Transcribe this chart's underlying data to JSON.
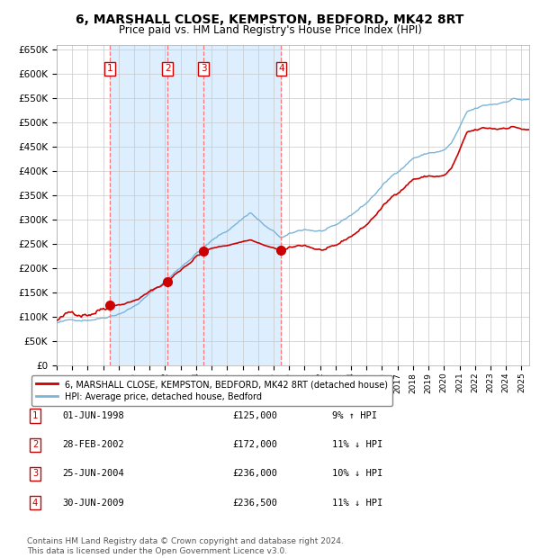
{
  "title": "6, MARSHALL CLOSE, KEMPSTON, BEDFORD, MK42 8RT",
  "subtitle": "Price paid vs. HM Land Registry's House Price Index (HPI)",
  "title_fontsize": 10,
  "subtitle_fontsize": 8.5,
  "background_color": "#ffffff",
  "plot_bg_color": "#ffffff",
  "grid_color": "#c8c8c8",
  "hpi_line_color": "#7ab4d8",
  "price_line_color": "#cc0000",
  "sale_marker_color": "#cc0000",
  "shade_color": "#ddeeff",
  "dashed_line_color": "#ff7777",
  "ylim": [
    0,
    660000
  ],
  "yticks": [
    0,
    50000,
    100000,
    150000,
    200000,
    250000,
    300000,
    350000,
    400000,
    450000,
    500000,
    550000,
    600000,
    650000
  ],
  "ytick_labels": [
    "£0",
    "£50K",
    "£100K",
    "£150K",
    "£200K",
    "£250K",
    "£300K",
    "£350K",
    "£400K",
    "£450K",
    "£500K",
    "£550K",
    "£600K",
    "£650K"
  ],
  "xlim_start": 1995.0,
  "xlim_end": 2025.5,
  "xticks": [
    1995,
    1996,
    1997,
    1998,
    1999,
    2000,
    2001,
    2002,
    2003,
    2004,
    2005,
    2006,
    2007,
    2008,
    2009,
    2010,
    2011,
    2012,
    2013,
    2014,
    2015,
    2016,
    2017,
    2018,
    2019,
    2020,
    2021,
    2022,
    2023,
    2024,
    2025
  ],
  "legend_label_price": "6, MARSHALL CLOSE, KEMPSTON, BEDFORD, MK42 8RT (detached house)",
  "legend_label_hpi": "HPI: Average price, detached house, Bedford",
  "sales": [
    {
      "num": 1,
      "date": "01-JUN-1998",
      "year": 1998.42,
      "price": 125000,
      "pct": "9%",
      "dir": "↑"
    },
    {
      "num": 2,
      "date": "28-FEB-2002",
      "year": 2002.16,
      "price": 172000,
      "pct": "11%",
      "dir": "↓"
    },
    {
      "num": 3,
      "date": "25-JUN-2004",
      "year": 2004.48,
      "price": 236000,
      "pct": "10%",
      "dir": "↓"
    },
    {
      "num": 4,
      "date": "30-JUN-2009",
      "year": 2009.49,
      "price": 236500,
      "pct": "11%",
      "dir": "↓"
    }
  ],
  "footer": "Contains HM Land Registry data © Crown copyright and database right 2024.\nThis data is licensed under the Open Government Licence v3.0.",
  "footer_fontsize": 6.5
}
